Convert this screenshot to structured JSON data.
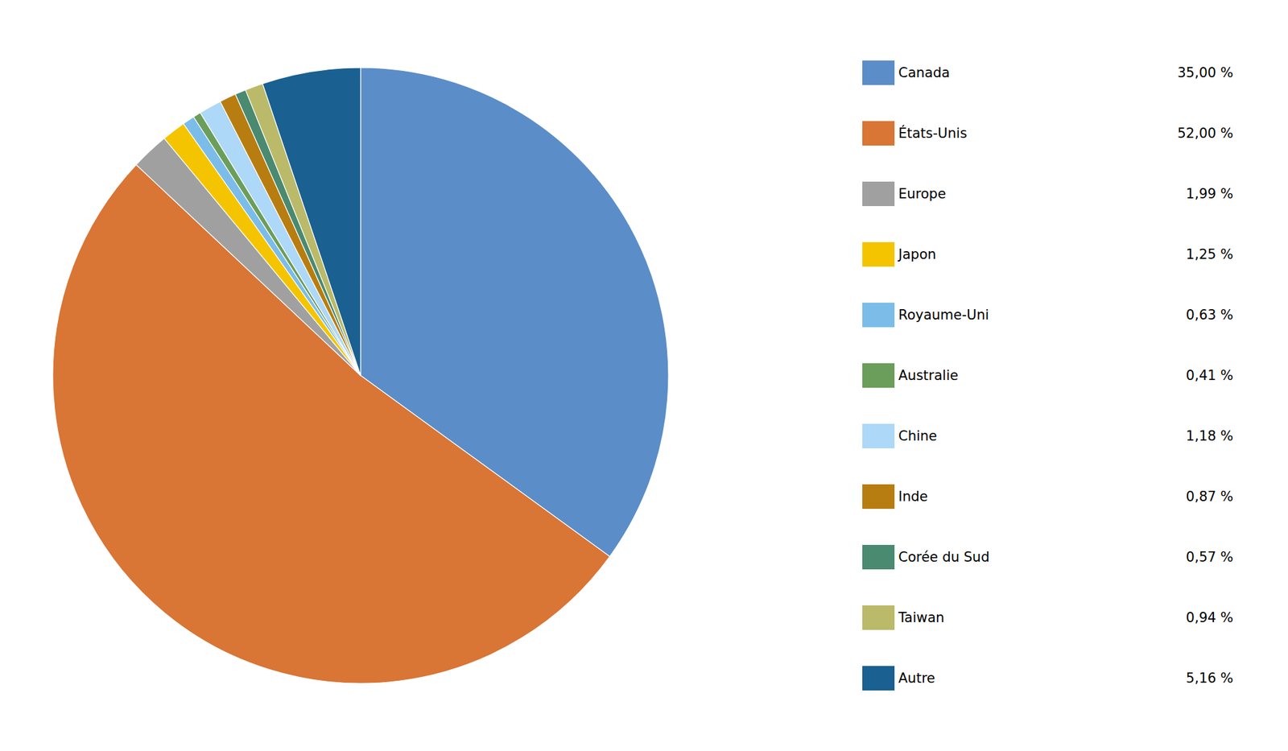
{
  "chart_data": {
    "type": "pie",
    "categories": [
      "Canada",
      "États-Unis",
      "Europe",
      "Japon",
      "Royaume-Uni",
      "Australie",
      "Chine",
      "Inde",
      "Corée du Sud",
      "Taiwan",
      "Autre"
    ],
    "values": [
      35.0,
      52.0,
      1.99,
      1.25,
      0.63,
      0.41,
      1.18,
      0.87,
      0.57,
      0.94,
      5.16
    ],
    "value_labels": [
      "35,00 %",
      "52,00 %",
      "1,99 %",
      "1,25 %",
      "0,63 %",
      " 0,41 %",
      "1,18 %",
      "0,87 %",
      " 0,57 %",
      " 0,94 %",
      "5,16 %"
    ],
    "colors": [
      "#5B8DC8",
      "#D97535",
      "#A0A0A0",
      "#F5C400",
      "#7BBDE8",
      "#6B9E5A",
      "#ADD8F7",
      "#B87D10",
      "#4A8A70",
      "#BABA6A",
      "#1A6090"
    ],
    "legend": "right"
  }
}
